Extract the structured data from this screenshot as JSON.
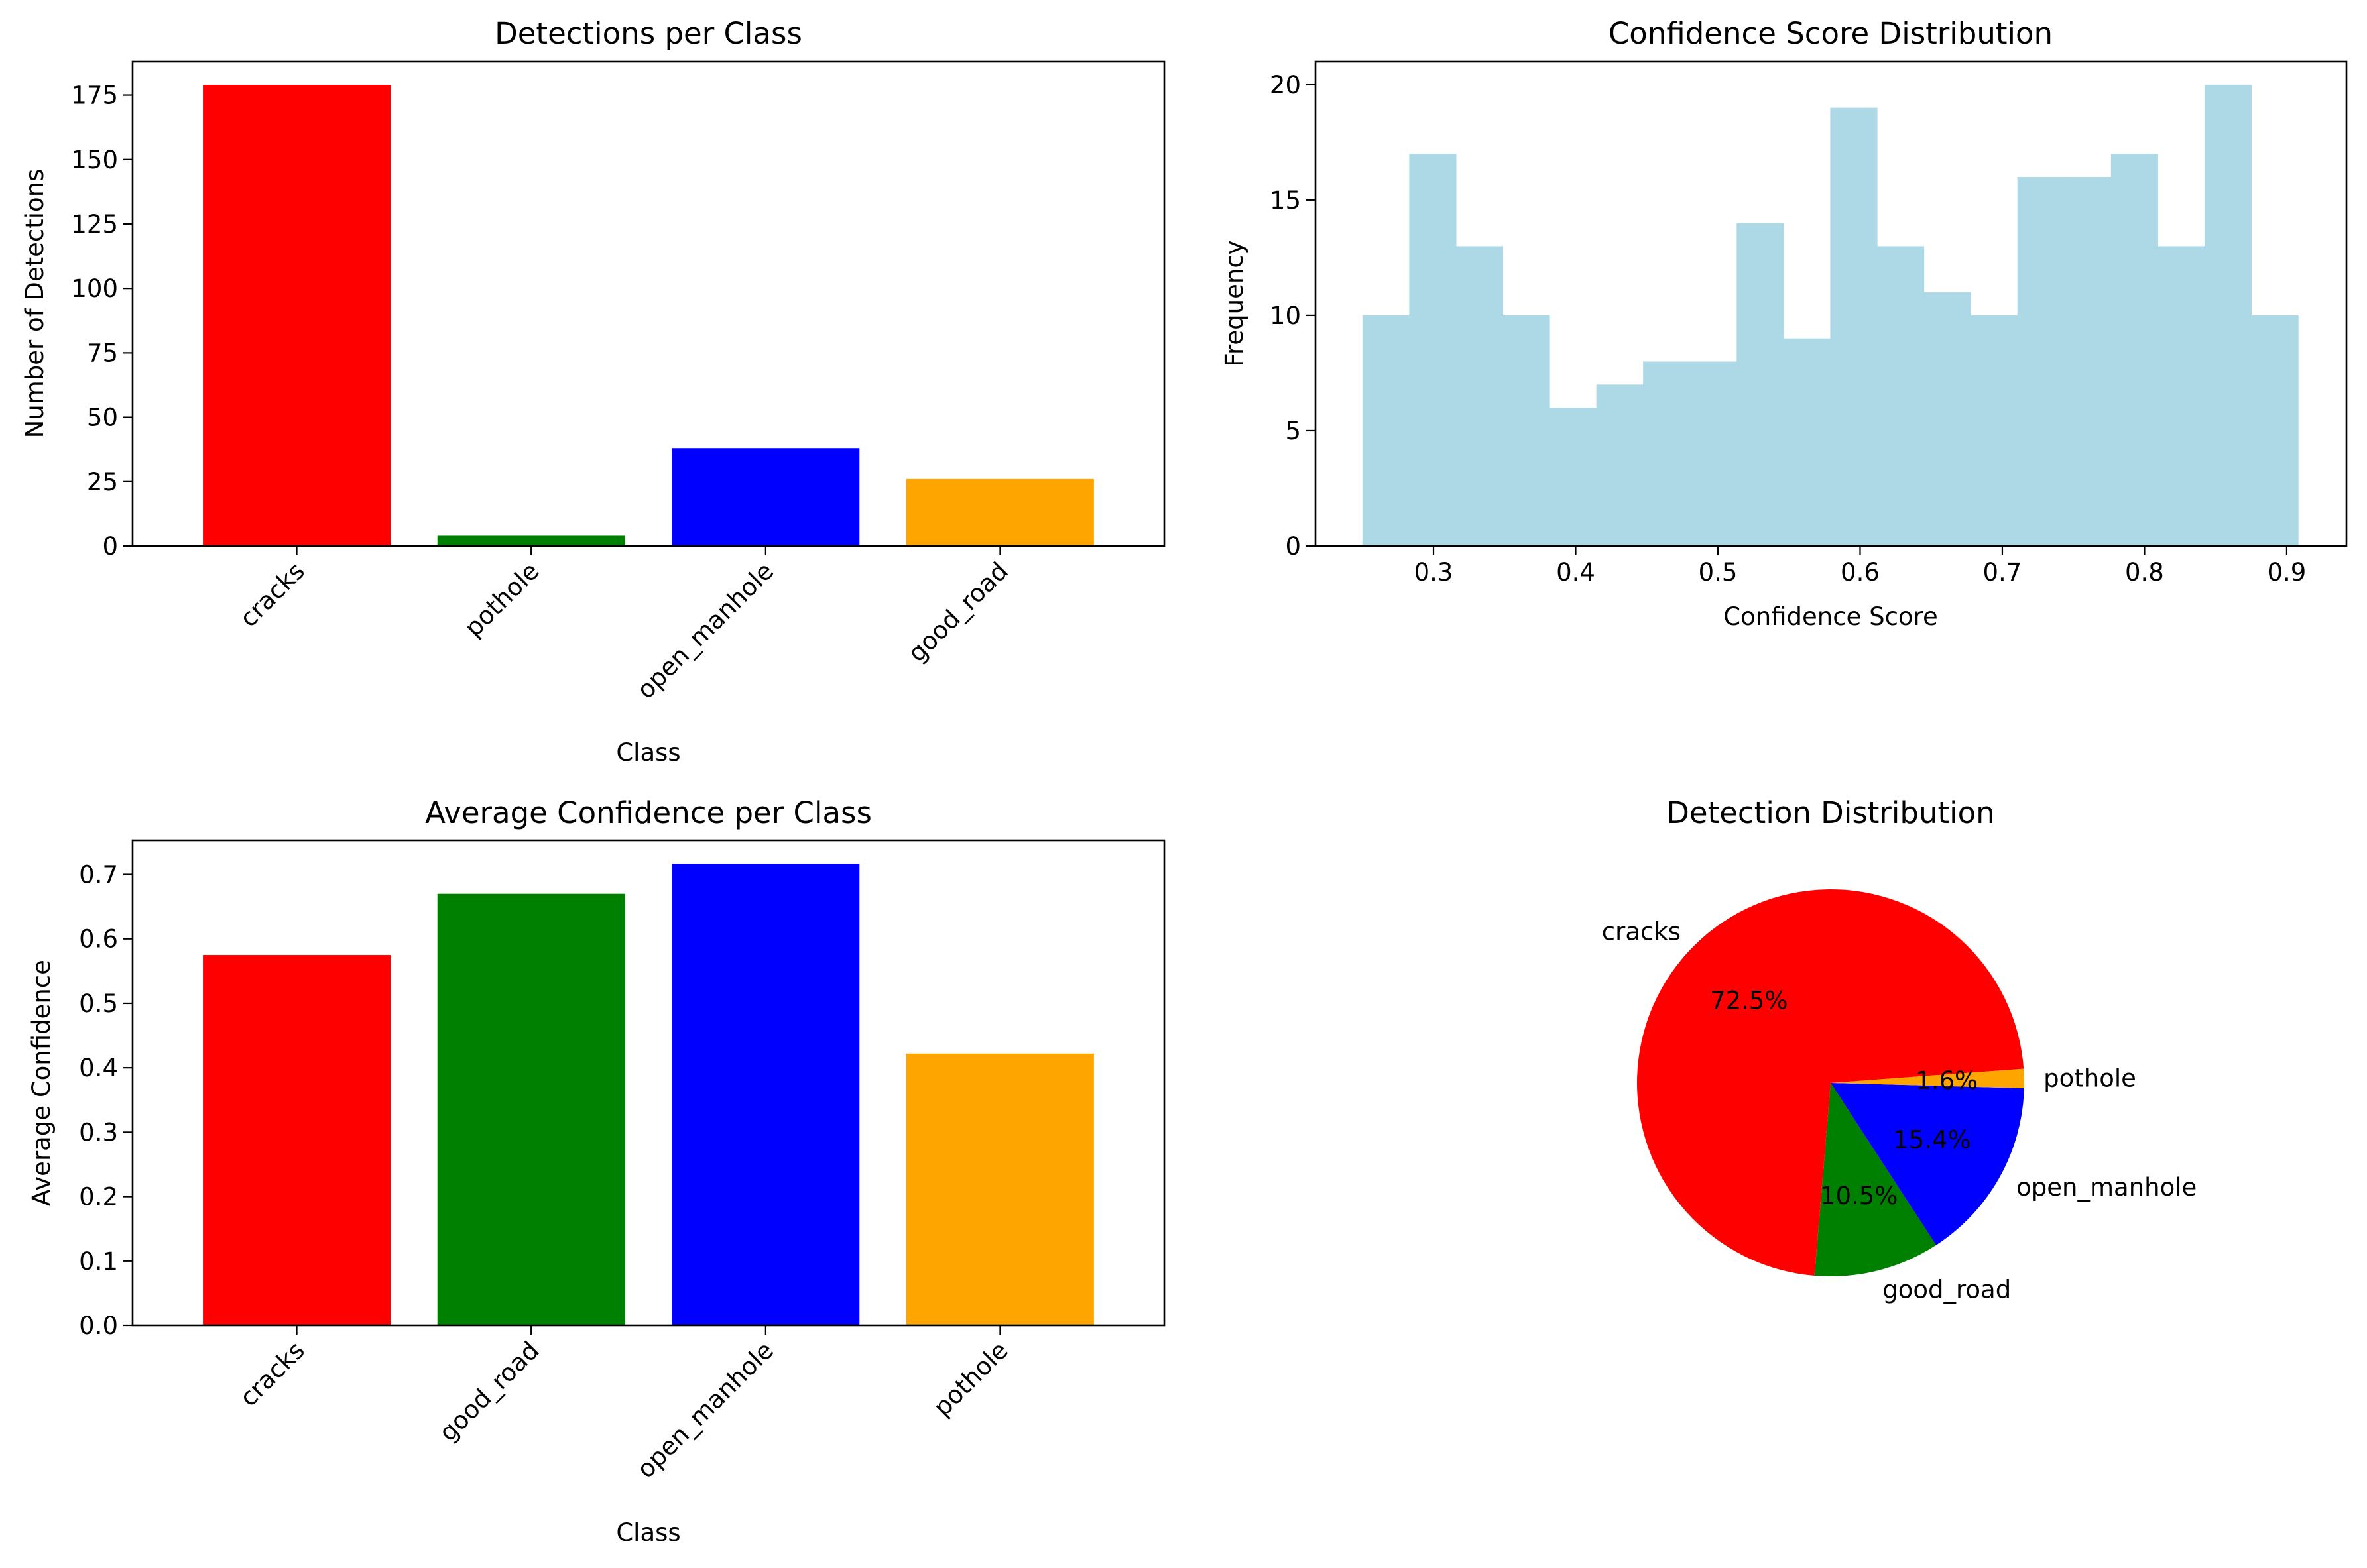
{
  "chart_data": [
    {
      "type": "bar",
      "title": "Detections per Class",
      "xlabel": "Class",
      "ylabel": "Number of Detections",
      "categories": [
        "cracks",
        "pothole",
        "open_manhole",
        "good_road"
      ],
      "values": [
        179,
        4,
        38,
        26
      ],
      "colors": [
        "#ff0000",
        "#008000",
        "#0000ff",
        "#ffa500"
      ],
      "ylim": [
        0,
        188
      ],
      "yticks": [
        0,
        25,
        50,
        75,
        100,
        125,
        150,
        175
      ],
      "ytick_labels": [
        "0",
        "25",
        "50",
        "75",
        "100",
        "125",
        "150",
        "175"
      ],
      "grid": false
    },
    {
      "type": "histogram",
      "title": "Confidence Score Distribution",
      "xlabel": "Confidence Score",
      "ylabel": "Frequency",
      "bin_start": 0.25,
      "bin_width": 0.0329,
      "counts": [
        10,
        17,
        13,
        10,
        6,
        7,
        8,
        8,
        14,
        9,
        19,
        13,
        11,
        10,
        16,
        16,
        17,
        13,
        20,
        10
      ],
      "color": "#add8e6",
      "xlim": [
        0.217,
        0.942
      ],
      "ylim": [
        0,
        21
      ],
      "xticks": [
        0.3,
        0.4,
        0.5,
        0.6,
        0.7,
        0.8,
        0.9
      ],
      "xtick_labels": [
        "0.3",
        "0.4",
        "0.5",
        "0.6",
        "0.7",
        "0.8",
        "0.9"
      ],
      "yticks": [
        0,
        5,
        10,
        15,
        20
      ],
      "ytick_labels": [
        "0",
        "5",
        "10",
        "15",
        "20"
      ],
      "grid": false
    },
    {
      "type": "bar",
      "title": "Average Confidence per Class",
      "xlabel": "Class",
      "ylabel": "Average Confidence",
      "categories": [
        "cracks",
        "good_road",
        "open_manhole",
        "pothole"
      ],
      "values": [
        0.575,
        0.67,
        0.717,
        0.422
      ],
      "colors": [
        "#ff0000",
        "#008000",
        "#0000ff",
        "#ffa500"
      ],
      "ylim": [
        0,
        0.753
      ],
      "yticks": [
        0,
        0.1,
        0.2,
        0.3,
        0.4,
        0.5,
        0.6,
        0.7
      ],
      "ytick_labels": [
        "0.0",
        "0.1",
        "0.2",
        "0.3",
        "0.4",
        "0.5",
        "0.6",
        "0.7"
      ],
      "grid": false
    },
    {
      "type": "pie",
      "title": "Detection Distribution",
      "labels": [
        "cracks",
        "good_road",
        "open_manhole",
        "pothole"
      ],
      "values": [
        72.5,
        10.5,
        15.4,
        1.6
      ],
      "percent_labels": [
        "72.5%",
        "10.5%",
        "15.4%",
        "1.6%"
      ],
      "colors": [
        "#ff0000",
        "#008000",
        "#0000ff",
        "#ffa500"
      ]
    }
  ]
}
